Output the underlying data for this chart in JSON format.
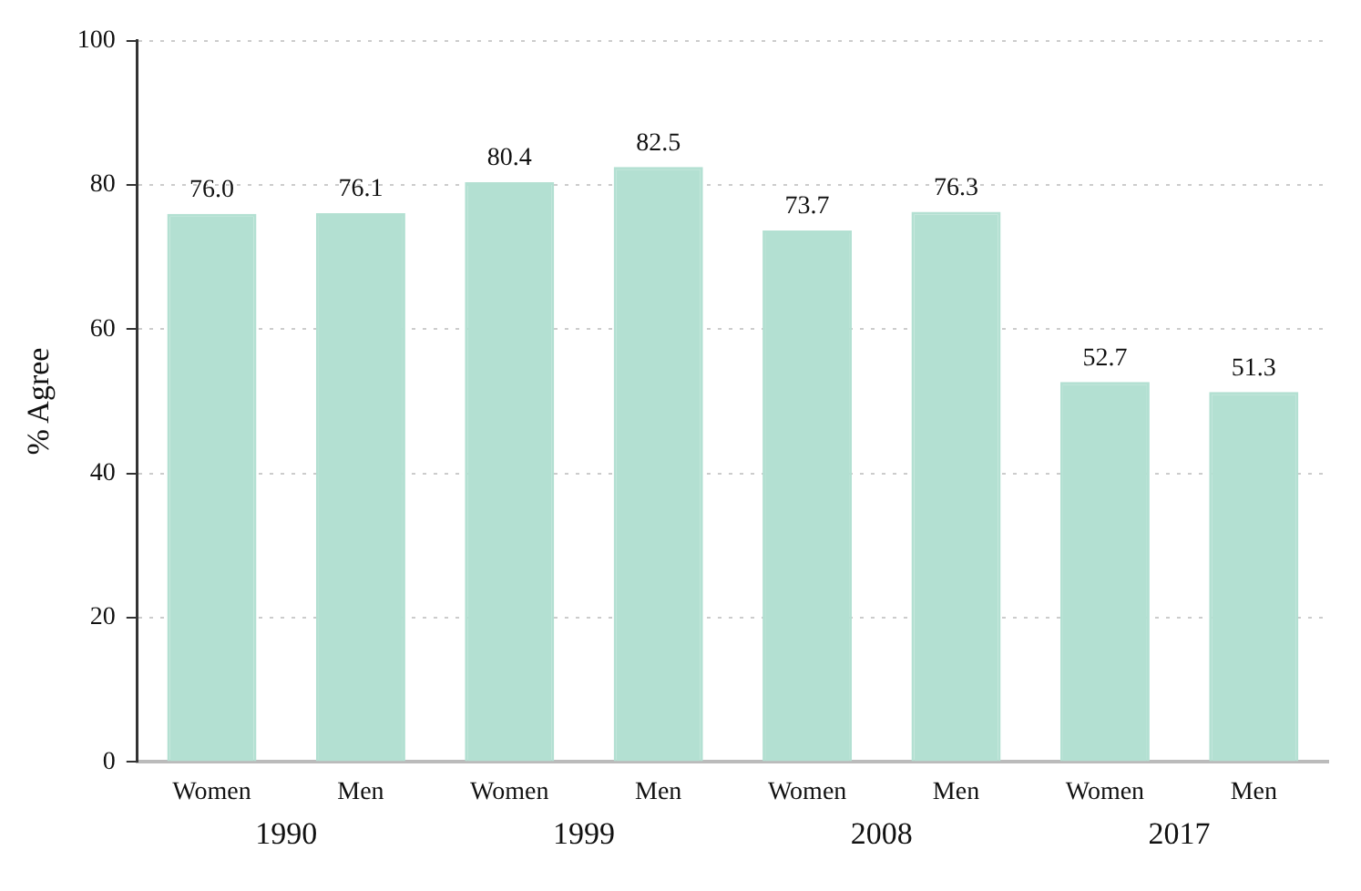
{
  "chart_data": {
    "type": "bar",
    "ylabel": "% Agree",
    "categories": [
      "Women",
      "Men",
      "Women",
      "Men",
      "Women",
      "Men",
      "Women",
      "Men"
    ],
    "values": [
      76.0,
      76.1,
      80.4,
      82.5,
      73.7,
      76.3,
      52.7,
      51.3
    ],
    "value_labels": [
      "76.0",
      "76.1",
      "80.4",
      "82.5",
      "73.7",
      "76.3",
      "52.7",
      "51.3"
    ],
    "color": "#b3e0d2",
    "ylim": [
      0,
      100
    ],
    "yticks": [
      0,
      20,
      40,
      60,
      80,
      100
    ],
    "grid": "y",
    "annotations": [
      "1990",
      "1999",
      "2008",
      "2017"
    ]
  }
}
